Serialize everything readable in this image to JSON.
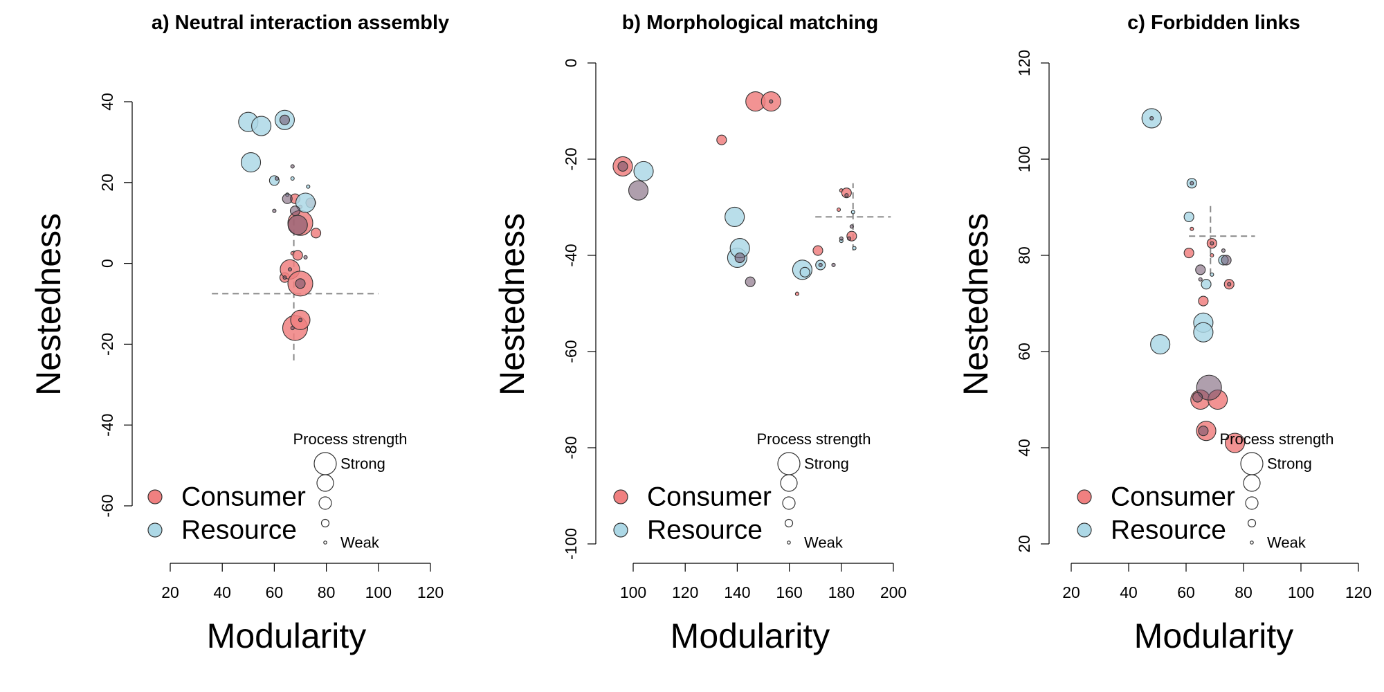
{
  "colors": {
    "consumer": "#F08080",
    "resource": "#ADD8E6",
    "reference_line": "#888888"
  },
  "legend": {
    "entries": [
      "Consumer",
      "Resource"
    ],
    "size_title": "Process strength",
    "size_high": "Strong",
    "size_low": "Weak",
    "placement": "bottom"
  },
  "chart_data": [
    {
      "type": "scatter",
      "title": "a) Neutral interaction assembly",
      "xlabel": "Modularity",
      "ylabel": "Nestedness",
      "xlim": [
        20,
        120
      ],
      "ylim": [
        -60,
        40
      ],
      "xticks": [
        20,
        40,
        60,
        80,
        100,
        120
      ],
      "yticks": [
        -60,
        -40,
        -20,
        0,
        20,
        40
      ],
      "reference": {
        "x": 67.5,
        "y": -7.5,
        "x_range": [
          36,
          100
        ],
        "y_range": [
          -24,
          12
        ]
      },
      "series": [
        {
          "name": "Consumer",
          "points": [
            [
              68,
              -16,
              4
            ],
            [
              70,
              -14,
              3
            ],
            [
              64,
              -3.5,
              2
            ],
            [
              66,
              -1.5,
              3
            ],
            [
              70,
              -5,
              4
            ],
            [
              67,
              2.5,
              1
            ],
            [
              69,
              2,
              2
            ],
            [
              76,
              7.5,
              2
            ],
            [
              70,
              14,
              1
            ],
            [
              74,
              15,
              2
            ],
            [
              70,
              10,
              4
            ],
            [
              68,
              16,
              2
            ]
          ]
        },
        {
          "name": "Resource",
          "points": [
            [
              50,
              35,
              3
            ],
            [
              55,
              34,
              3
            ],
            [
              64,
              35.5,
              3
            ],
            [
              51,
              25,
              3
            ],
            [
              60,
              20.5,
              2
            ],
            [
              65,
              17,
              1
            ],
            [
              67,
              21,
              1
            ],
            [
              73,
              19,
              1
            ],
            [
              72,
              15,
              3
            ]
          ]
        },
        {
          "name": "",
          "points": [
            [
              70,
              -14,
              1
            ],
            [
              67,
              -16,
              1
            ],
            [
              70,
              -5,
              2
            ],
            [
              64,
              -3.5,
              1
            ],
            [
              66,
              -1.5,
              1
            ],
            [
              72,
              1.5,
              1
            ],
            [
              68,
              13,
              2
            ],
            [
              60,
              13,
              1
            ],
            [
              69,
              9.5,
              3
            ],
            [
              65,
              16,
              2
            ],
            [
              61,
              21,
              1
            ],
            [
              67,
              24,
              1
            ],
            [
              64,
              35.5,
              2
            ]
          ]
        }
      ]
    },
    {
      "type": "scatter",
      "title": "b) Morphological matching",
      "xlabel": "Modularity",
      "ylabel": "Nestedness",
      "xlim": [
        100,
        200
      ],
      "ylim": [
        -100,
        0
      ],
      "xticks": [
        100,
        120,
        140,
        160,
        180,
        200
      ],
      "yticks": [
        -100,
        -80,
        -60,
        -40,
        -20,
        0
      ],
      "reference": {
        "x": 184.5,
        "y": -32,
        "x_range": [
          170,
          199
        ],
        "y_range": [
          -39,
          -25
        ]
      },
      "series": [
        {
          "name": "Consumer",
          "points": [
            [
              96,
              -21.5,
              3
            ],
            [
              134,
              -16,
              2
            ],
            [
              147,
              -8,
              3
            ],
            [
              153,
              -8,
              3
            ],
            [
              163,
              -48,
              1
            ],
            [
              171,
              -39,
              2
            ],
            [
              179,
              -30.5,
              1
            ],
            [
              180,
              -26.5,
              1
            ],
            [
              182,
              -27,
              2
            ],
            [
              184,
              -36,
              2
            ]
          ]
        },
        {
          "name": "Resource",
          "points": [
            [
              104,
              -22.5,
              3
            ],
            [
              139,
              -32,
              3
            ],
            [
              140,
              -40.5,
              3
            ],
            [
              141,
              -38.5,
              3
            ],
            [
              165,
              -43,
              3
            ],
            [
              166,
              -43.5,
              2
            ],
            [
              172,
              -42,
              2
            ],
            [
              180,
              -37,
              1
            ],
            [
              184.5,
              -31,
              1
            ],
            [
              185,
              -38.5,
              1
            ]
          ]
        },
        {
          "name": "",
          "points": [
            [
              102,
              -26.5,
              3
            ],
            [
              145,
              -45.5,
              2
            ],
            [
              153,
              -8,
              1
            ],
            [
              177,
              -42,
              1
            ],
            [
              180,
              -36.5,
              1
            ],
            [
              183,
              -36.5,
              1
            ],
            [
              184,
              -34,
              1
            ],
            [
              96,
              -21.5,
              2
            ],
            [
              141,
              -40.5,
              2
            ],
            [
              172,
              -42,
              1
            ],
            [
              182,
              -27.5,
              1
            ]
          ]
        }
      ]
    },
    {
      "type": "scatter",
      "title": "c) Forbidden links",
      "xlabel": "Modularity",
      "ylabel": "Nestedness",
      "xlim": [
        20,
        120
      ],
      "ylim": [
        20,
        120
      ],
      "xticks": [
        20,
        40,
        60,
        80,
        100,
        120
      ],
      "yticks": [
        20,
        40,
        60,
        80,
        100,
        120
      ],
      "reference": {
        "x": 68.5,
        "y": 84,
        "x_range": [
          61,
          84
        ],
        "y_range": [
          76,
          91
        ]
      },
      "series": [
        {
          "name": "Consumer",
          "points": [
            [
              61,
              80.5,
              2
            ],
            [
              62,
              85.5,
              1
            ],
            [
              69,
              82.5,
              2
            ],
            [
              69,
              80,
              1
            ],
            [
              66,
              70.5,
              2
            ],
            [
              75,
              74,
              2
            ],
            [
              65,
              50,
              3
            ],
            [
              71,
              50,
              3
            ],
            [
              67,
              43.5,
              3
            ],
            [
              77,
              41,
              3
            ]
          ]
        },
        {
          "name": "Resource",
          "points": [
            [
              48,
              108.5,
              3
            ],
            [
              62,
              95,
              2
            ],
            [
              61,
              88,
              2
            ],
            [
              69,
              76,
              1
            ],
            [
              67,
              74,
              2
            ],
            [
              73,
              79,
              2
            ],
            [
              66,
              66,
              3
            ],
            [
              66,
              64,
              3
            ],
            [
              51,
              61.5,
              3
            ]
          ]
        },
        {
          "name": "",
          "points": [
            [
              65,
              77,
              2
            ],
            [
              65,
              75,
              1
            ],
            [
              73,
              81,
              1
            ],
            [
              74,
              79,
              2
            ],
            [
              68,
              52.5,
              4
            ],
            [
              64,
              50.5,
              2
            ],
            [
              66,
              43.5,
              2
            ],
            [
              48,
              108.5,
              1
            ],
            [
              62,
              95,
              1
            ],
            [
              75,
              74,
              1
            ],
            [
              69,
              82.5,
              1
            ]
          ]
        }
      ]
    }
  ]
}
